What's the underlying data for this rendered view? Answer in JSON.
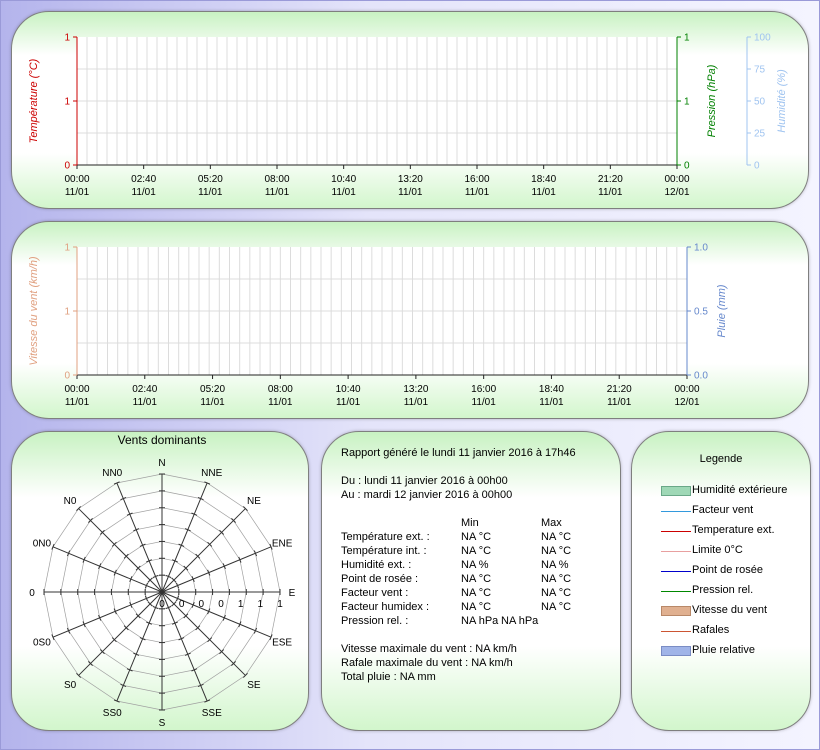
{
  "chart_data": [
    {
      "type": "line",
      "x": [
        "00:00",
        "02:40",
        "05:20",
        "08:00",
        "10:40",
        "13:20",
        "16:00",
        "18:40",
        "21:20",
        "00:00"
      ],
      "x_dates": [
        "11/01",
        "11/01",
        "11/01",
        "11/01",
        "11/01",
        "11/01",
        "11/01",
        "11/01",
        "11/01",
        "12/01"
      ],
      "axes": [
        {
          "label": "Température (°C)",
          "side": "left",
          "ticks": [
            "1",
            "1",
            "0"
          ],
          "color": "#cc0000"
        },
        {
          "label": "Pression (hPa)",
          "side": "right",
          "ticks": [
            "1",
            "1",
            "0"
          ],
          "color": "#008000"
        },
        {
          "label": "Humidité (%)",
          "side": "right",
          "ticks": [
            "100",
            "75",
            "50",
            "25",
            "0"
          ],
          "color": "#a0c4f0"
        }
      ],
      "grid": true,
      "series": []
    },
    {
      "type": "line",
      "x": [
        "00:00",
        "02:40",
        "05:20",
        "08:00",
        "10:40",
        "13:20",
        "16:00",
        "18:40",
        "21:20",
        "00:00"
      ],
      "x_dates": [
        "11/01",
        "11/01",
        "11/01",
        "11/01",
        "11/01",
        "11/01",
        "11/01",
        "11/01",
        "11/01",
        "12/01"
      ],
      "axes": [
        {
          "label": "Vitesse du vent (km/h)",
          "side": "left",
          "ticks": [
            "1",
            "1",
            "0"
          ],
          "color": "#e0a080"
        },
        {
          "label": "Pluie (mm)",
          "side": "right",
          "ticks": [
            "1.0",
            "0.5",
            "0.0"
          ],
          "color": "#6688cc"
        }
      ],
      "grid": true,
      "series": []
    },
    {
      "type": "radar",
      "title": "Vents dominants",
      "directions": [
        "N",
        "NNE",
        "NE",
        "ENE",
        "E",
        "ESE",
        "SE",
        "SSE",
        "S",
        "SS0",
        "S0",
        "0S0",
        "0",
        "0N0",
        "N0",
        "NN0"
      ],
      "ring_labels": [
        "0",
        "0",
        "0",
        "0",
        "1",
        "1",
        "1"
      ],
      "values": []
    }
  ],
  "report": {
    "generated": "Rapport généré le lundi 11 janvier 2016 à 17h46",
    "from": "Du : lundi 11 janvier 2016 à 00h00",
    "to": "Au : mardi 12 janvier 2016 à 00h00",
    "col_min": "Min",
    "col_max": "Max",
    "rows": [
      {
        "label": "Température ext. :",
        "min": "NA °C",
        "max": "NA °C"
      },
      {
        "label": "Température int. :",
        "min": "NA °C",
        "max": "NA °C"
      },
      {
        "label": "Humidité ext. :",
        "min": "NA %",
        "max": "NA %"
      },
      {
        "label": "Point de rosée :",
        "min": "NA °C",
        "max": "NA °C"
      },
      {
        "label": "Facteur vent :",
        "min": "NA °C",
        "max": "NA °C"
      },
      {
        "label": "Facteur humidex :",
        "min": "NA °C",
        "max": "NA °C"
      },
      {
        "label": "Pression rel. :",
        "min": "NA hPa",
        "max": "NA hPa"
      }
    ],
    "max_wind": "Vitesse maximale du vent : NA km/h",
    "max_gust": "Rafale maximale du vent : NA km/h",
    "total_rain": "Total pluie : NA mm"
  },
  "legend": {
    "title": "Legende",
    "items": [
      {
        "label": "Humidité extérieure",
        "kind": "box",
        "color": "#9fd8b6",
        "border": "#6aa888"
      },
      {
        "label": "Facteur vent",
        "kind": "line",
        "color": "#3399dd"
      },
      {
        "label": "Temperature ext.",
        "kind": "line",
        "color": "#cc0000"
      },
      {
        "label": "Limite 0°C",
        "kind": "line",
        "color": "#e8a0a0"
      },
      {
        "label": "Point de rosée",
        "kind": "line",
        "color": "#0000cc"
      },
      {
        "label": "Pression rel.",
        "kind": "line",
        "color": "#008800"
      },
      {
        "label": "Vitesse du vent",
        "kind": "box",
        "color": "#e0b090",
        "border": "#b88868"
      },
      {
        "label": "Rafales",
        "kind": "line",
        "color": "#cc5533"
      },
      {
        "label": "Pluie relative",
        "kind": "box",
        "color": "#a0b4e8",
        "border": "#7a8cc4"
      }
    ]
  }
}
